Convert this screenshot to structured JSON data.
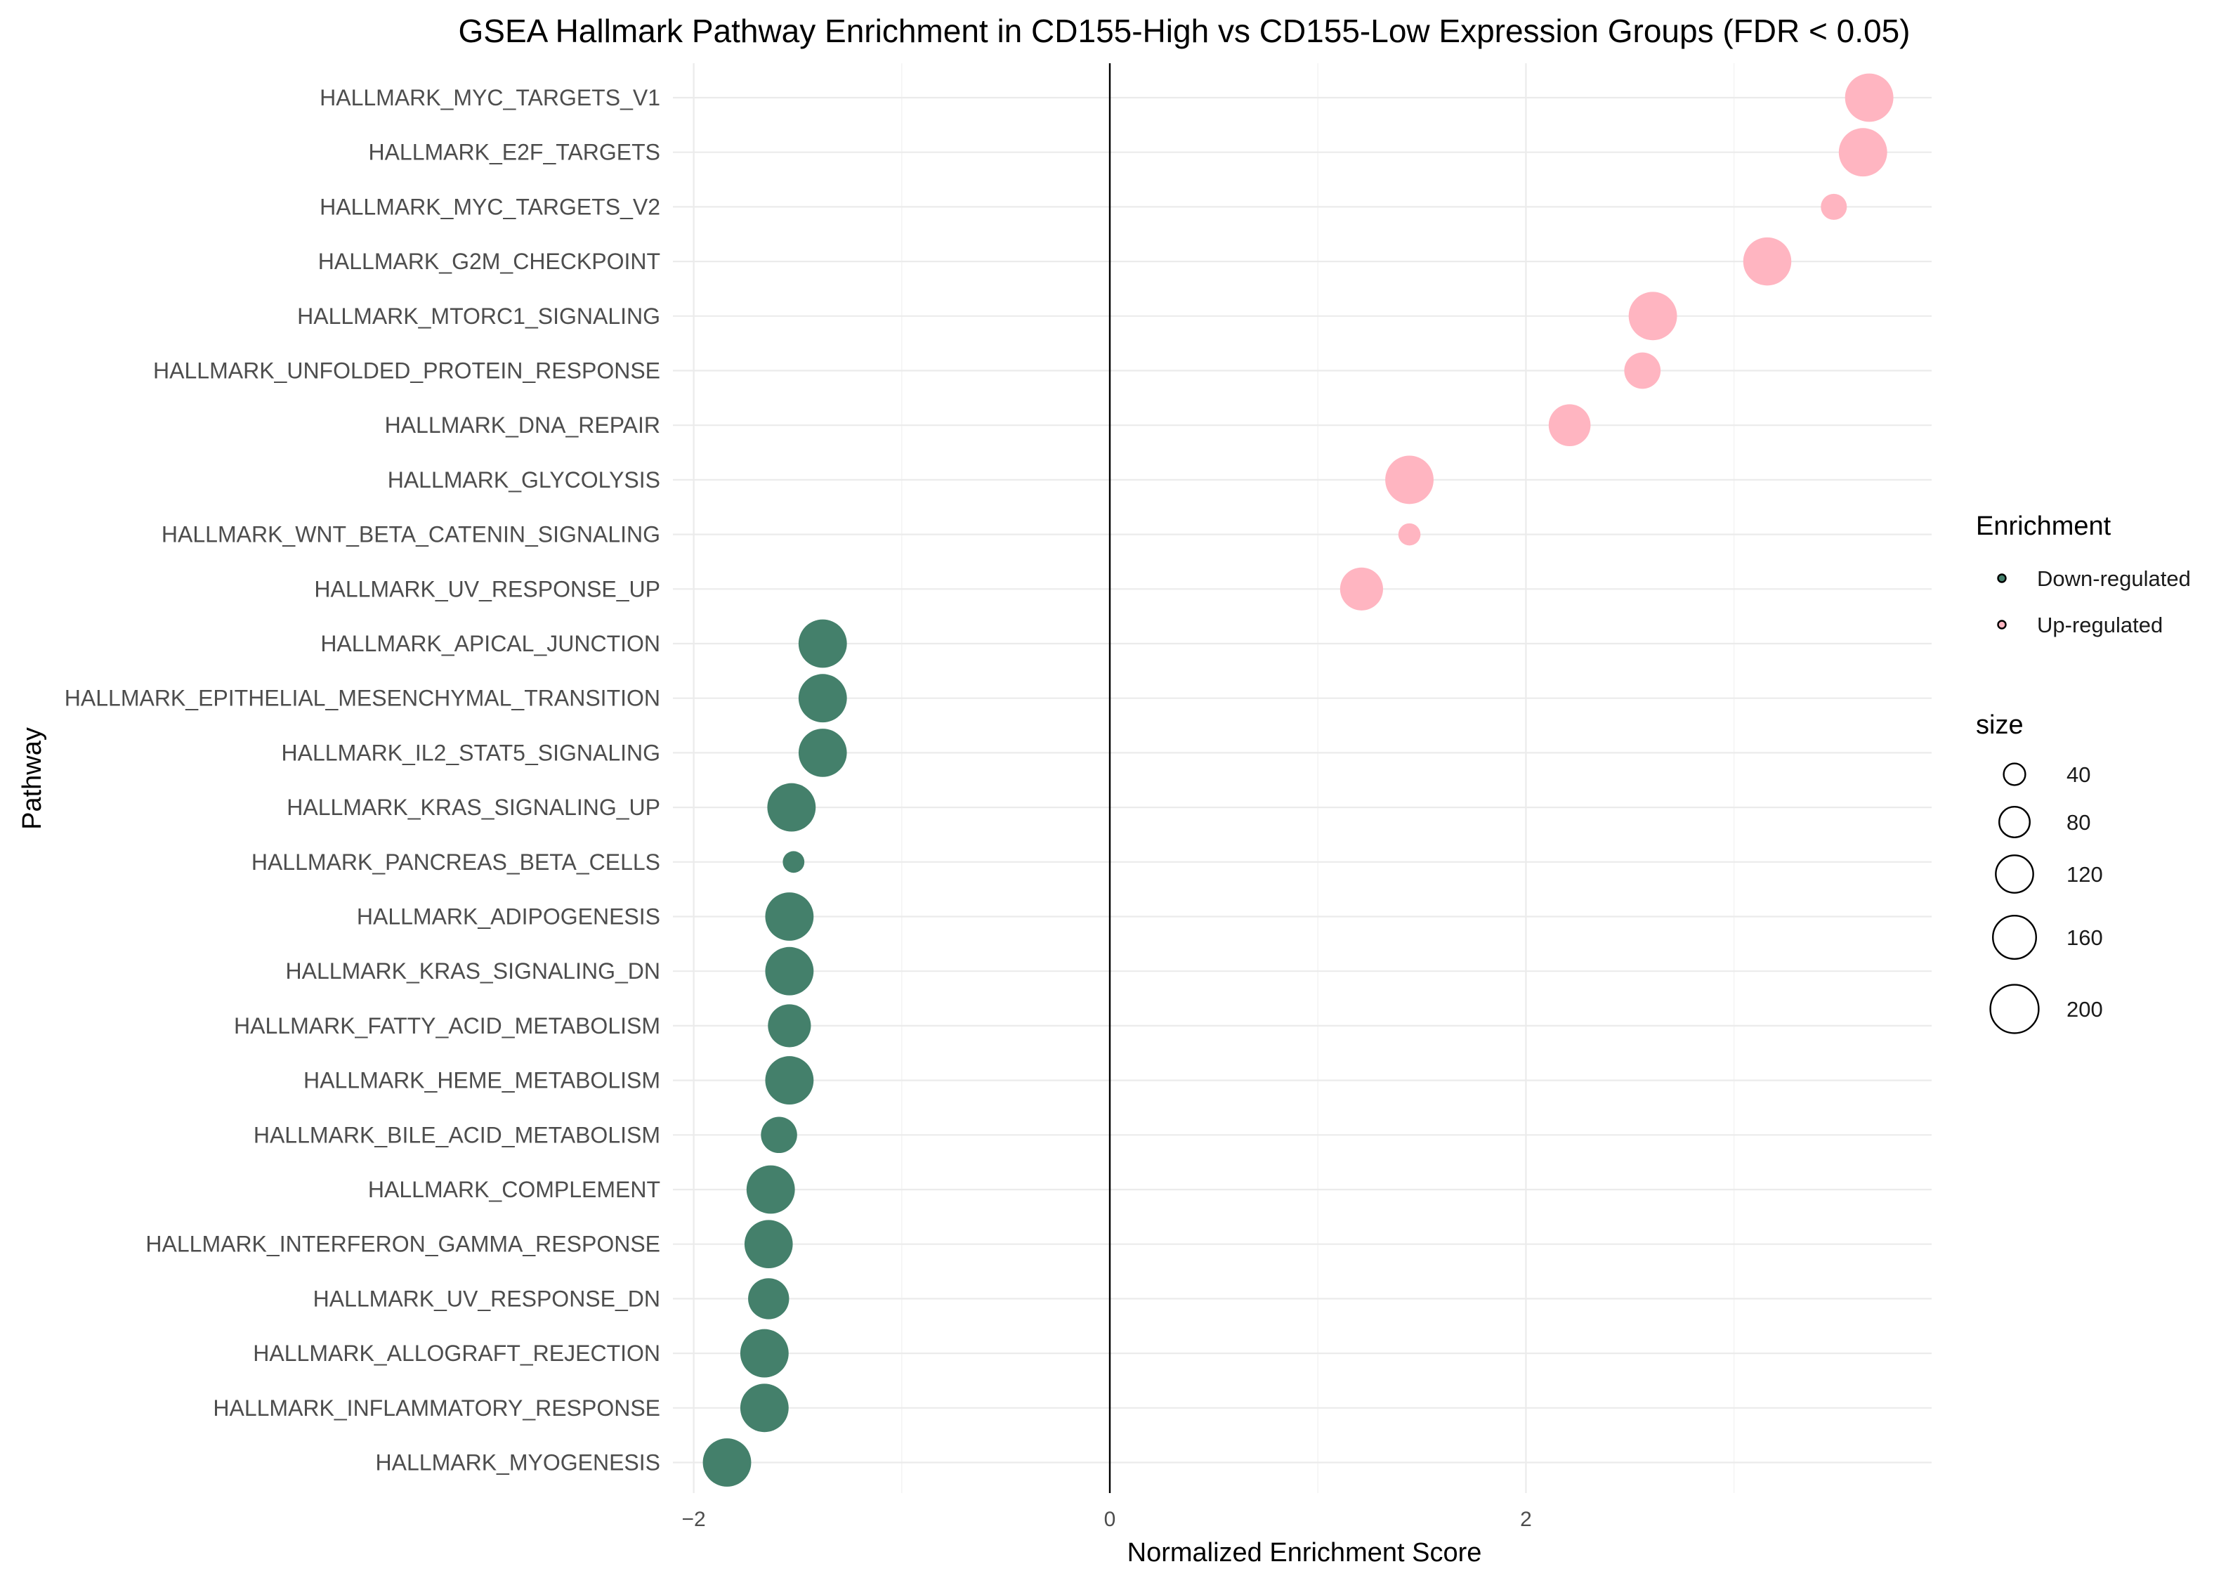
{
  "chart_data": {
    "type": "scatter",
    "title": "GSEA Hallmark Pathway Enrichment in CD155-High vs CD155-Low Expression Groups (FDR < 0.05)",
    "xlabel": "Normalized Enrichment Score",
    "ylabel": "Pathway",
    "xlim": [
      -2.1,
      3.95
    ],
    "x_ticks": [
      -2,
      0,
      2
    ],
    "x_tick_labels": [
      "−2",
      "0",
      "2"
    ],
    "zero_line": 0,
    "grid": true,
    "legend_position": "right",
    "colors": {
      "Down-regulated": "#44806B",
      "Up-regulated": "#FFB5C1"
    },
    "legends": {
      "color": {
        "title": "Enrichment",
        "labels": [
          "Down-regulated",
          "Up-regulated"
        ]
      },
      "size": {
        "title": "size",
        "values": [
          40,
          80,
          120,
          160,
          200
        ]
      }
    },
    "points": [
      {
        "pathway": "HALLMARK_MYC_TARGETS_V1",
        "nes": 3.65,
        "size": 200,
        "group": "Up-regulated"
      },
      {
        "pathway": "HALLMARK_E2F_TARGETS",
        "nes": 3.62,
        "size": 200,
        "group": "Up-regulated"
      },
      {
        "pathway": "HALLMARK_MYC_TARGETS_V2",
        "nes": 3.48,
        "size": 58,
        "group": "Up-regulated"
      },
      {
        "pathway": "HALLMARK_G2M_CHECKPOINT",
        "nes": 3.16,
        "size": 198,
        "group": "Up-regulated"
      },
      {
        "pathway": "HALLMARK_MTORC1_SIGNALING",
        "nes": 2.61,
        "size": 200,
        "group": "Up-regulated"
      },
      {
        "pathway": "HALLMARK_UNFOLDED_PROTEIN_RESPONSE",
        "nes": 2.56,
        "size": 113,
        "group": "Up-regulated"
      },
      {
        "pathway": "HALLMARK_DNA_REPAIR",
        "nes": 2.21,
        "size": 150,
        "group": "Up-regulated"
      },
      {
        "pathway": "HALLMARK_GLYCOLYSIS",
        "nes": 1.44,
        "size": 200,
        "group": "Up-regulated"
      },
      {
        "pathway": "HALLMARK_WNT_BETA_CATENIN_SIGNALING",
        "nes": 1.44,
        "size": 42,
        "group": "Up-regulated"
      },
      {
        "pathway": "HALLMARK_UV_RESPONSE_UP",
        "nes": 1.21,
        "size": 158,
        "group": "Up-regulated"
      },
      {
        "pathway": "HALLMARK_APICAL_JUNCTION",
        "nes": -1.38,
        "size": 200,
        "group": "Down-regulated"
      },
      {
        "pathway": "HALLMARK_EPITHELIAL_MESENCHYMAL_TRANSITION",
        "nes": -1.38,
        "size": 200,
        "group": "Down-regulated"
      },
      {
        "pathway": "HALLMARK_IL2_STAT5_SIGNALING",
        "nes": -1.38,
        "size": 199,
        "group": "Down-regulated"
      },
      {
        "pathway": "HALLMARK_KRAS_SIGNALING_UP",
        "nes": -1.53,
        "size": 200,
        "group": "Down-regulated"
      },
      {
        "pathway": "HALLMARK_PANCREAS_BETA_CELLS",
        "nes": -1.52,
        "size": 40,
        "group": "Down-regulated"
      },
      {
        "pathway": "HALLMARK_ADIPOGENESIS",
        "nes": -1.54,
        "size": 200,
        "group": "Down-regulated"
      },
      {
        "pathway": "HALLMARK_KRAS_SIGNALING_DN",
        "nes": -1.54,
        "size": 200,
        "group": "Down-regulated"
      },
      {
        "pathway": "HALLMARK_FATTY_ACID_METABOLISM",
        "nes": -1.54,
        "size": 158,
        "group": "Down-regulated"
      },
      {
        "pathway": "HALLMARK_HEME_METABOLISM",
        "nes": -1.54,
        "size": 200,
        "group": "Down-regulated"
      },
      {
        "pathway": "HALLMARK_BILE_ACID_METABOLISM",
        "nes": -1.59,
        "size": 112,
        "group": "Down-regulated"
      },
      {
        "pathway": "HALLMARK_COMPLEMENT",
        "nes": -1.63,
        "size": 200,
        "group": "Down-regulated"
      },
      {
        "pathway": "HALLMARK_INTERFERON_GAMMA_RESPONSE",
        "nes": -1.64,
        "size": 199,
        "group": "Down-regulated"
      },
      {
        "pathway": "HALLMARK_UV_RESPONSE_DN",
        "nes": -1.64,
        "size": 144,
        "group": "Down-regulated"
      },
      {
        "pathway": "HALLMARK_ALLOGRAFT_REJECTION",
        "nes": -1.66,
        "size": 200,
        "group": "Down-regulated"
      },
      {
        "pathway": "HALLMARK_INFLAMMATORY_RESPONSE",
        "nes": -1.66,
        "size": 200,
        "group": "Down-regulated"
      },
      {
        "pathway": "HALLMARK_MYOGENESIS",
        "nes": -1.84,
        "size": 200,
        "group": "Down-regulated"
      }
    ]
  }
}
